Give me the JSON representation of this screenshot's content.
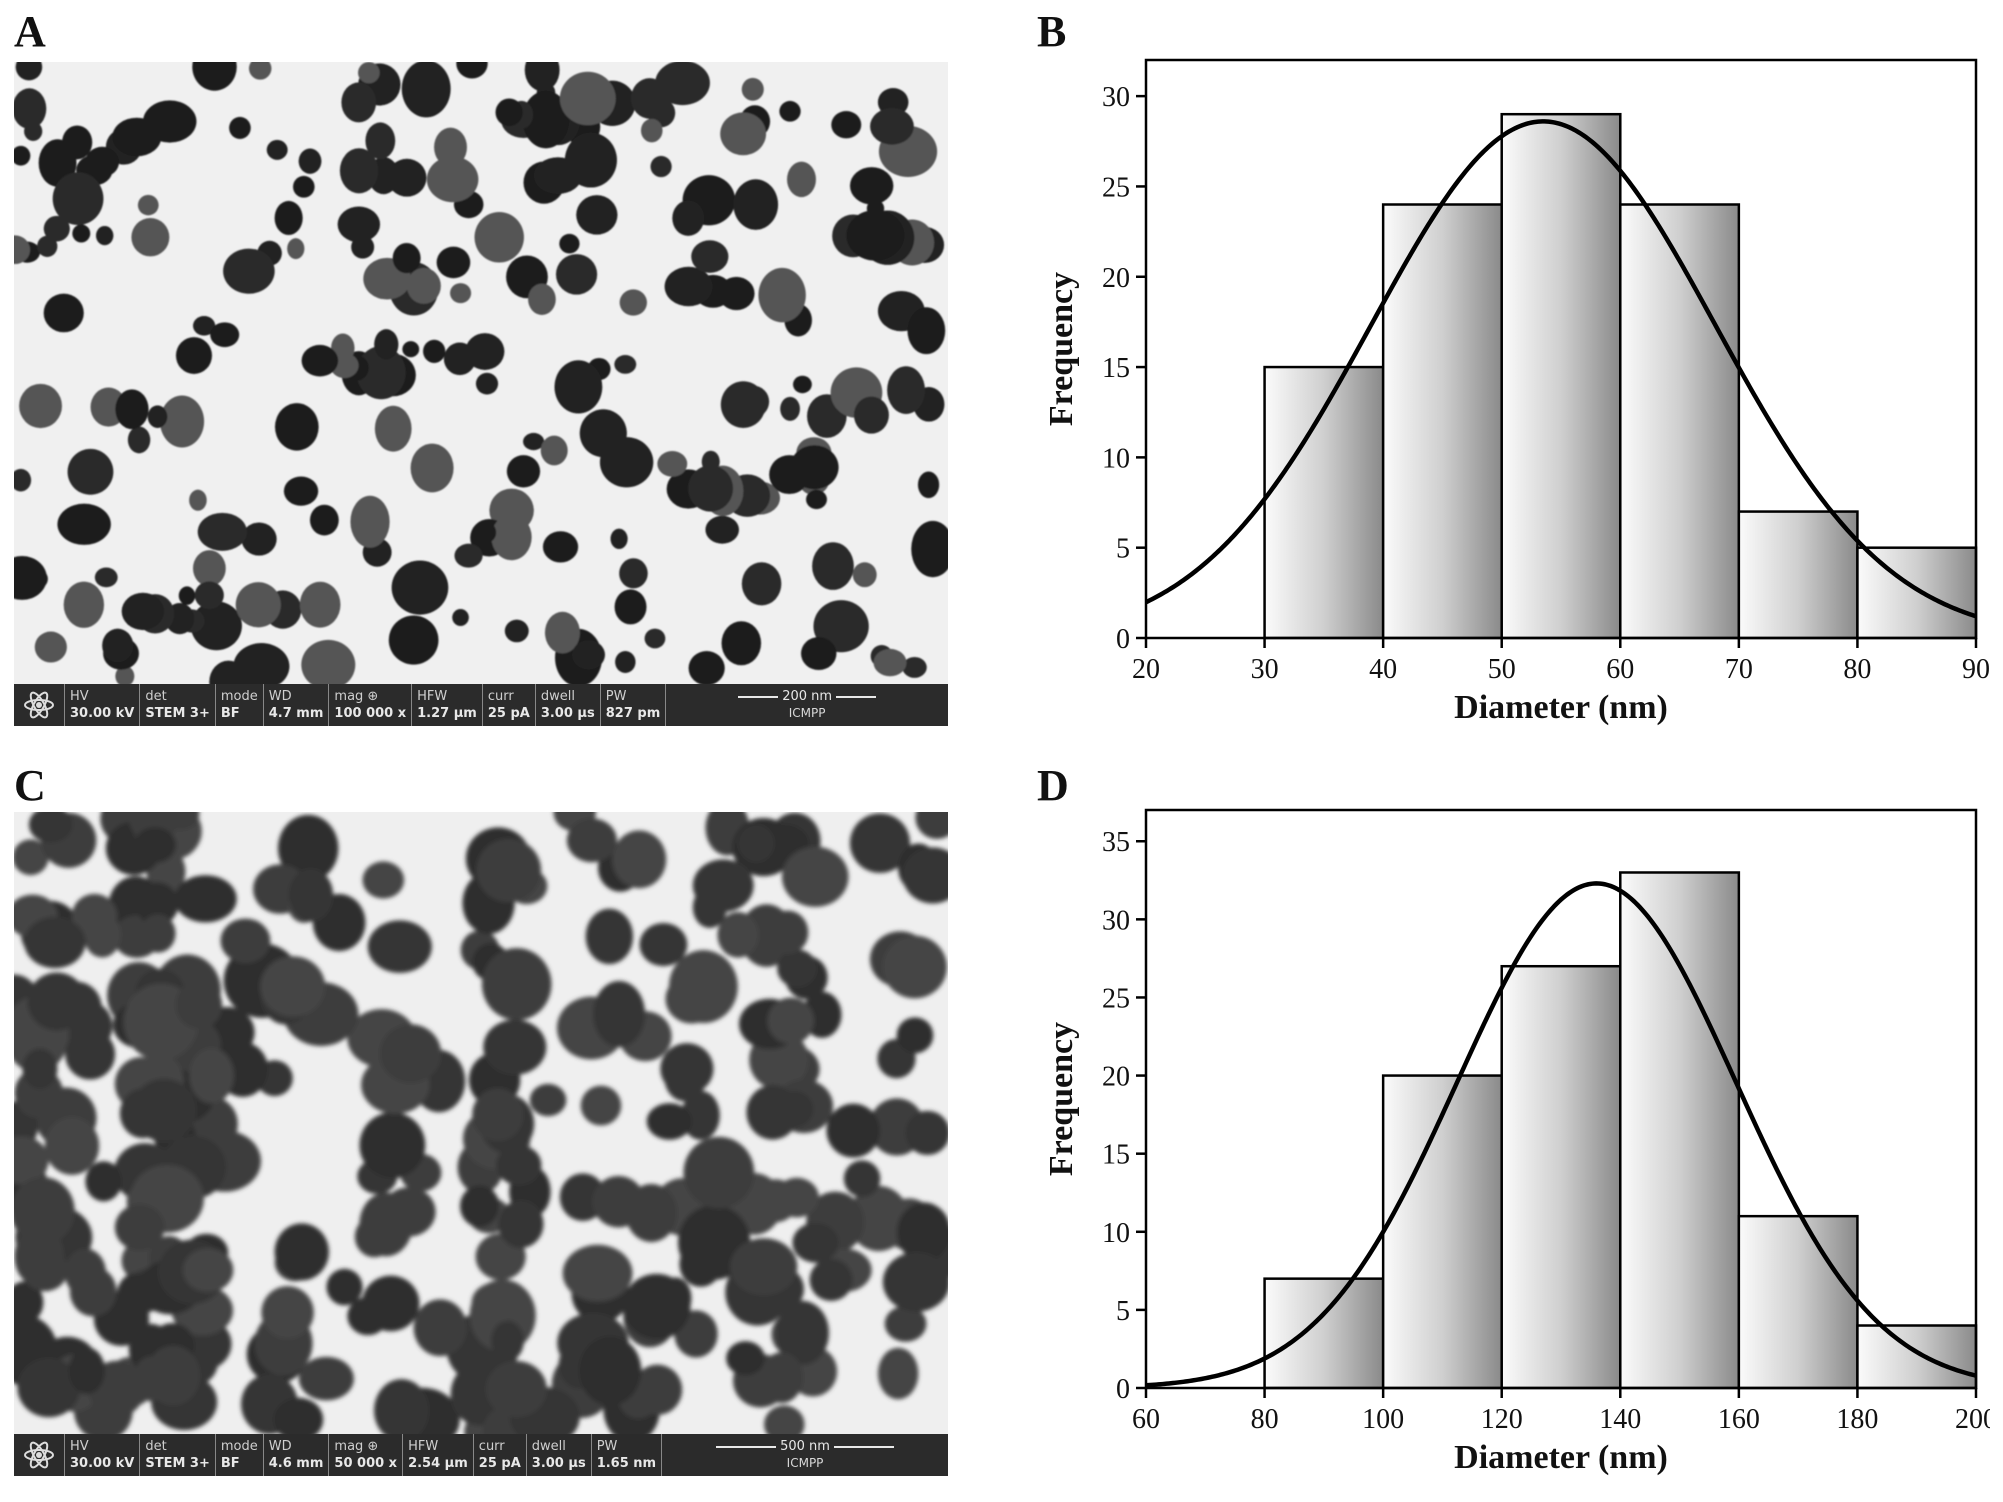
{
  "panels": [
    {
      "letter": "A",
      "infobar": [
        {
          "label": "HV",
          "value": "30.00 kV"
        },
        {
          "label": "det",
          "value": "STEM 3+"
        },
        {
          "label": "mode",
          "value": "BF"
        },
        {
          "label": "WD",
          "value": "4.7 mm"
        },
        {
          "label": "mag ⊕",
          "value": "100 000 x"
        },
        {
          "label": "HFW",
          "value": "1.27 µm"
        },
        {
          "label": "curr",
          "value": "25 pA"
        },
        {
          "label": "dwell",
          "value": "3.00 µs"
        },
        {
          "label": "PW",
          "value": "827 pm"
        }
      ],
      "scale": "200 nm",
      "lab": "ICMPP"
    },
    {
      "letter": "C",
      "infobar": [
        {
          "label": "HV",
          "value": "30.00 kV"
        },
        {
          "label": "det",
          "value": "STEM 3+"
        },
        {
          "label": "mode",
          "value": "BF"
        },
        {
          "label": "WD",
          "value": "4.6 mm"
        },
        {
          "label": "mag ⊕",
          "value": "50 000 x"
        },
        {
          "label": "HFW",
          "value": "2.54 µm"
        },
        {
          "label": "curr",
          "value": "25 pA"
        },
        {
          "label": "dwell",
          "value": "3.00 µs"
        },
        {
          "label": "PW",
          "value": "1.65 nm"
        }
      ],
      "scale": "500 nm",
      "lab": "ICMPP"
    }
  ],
  "chart_letters": [
    "B",
    "D"
  ],
  "chart_data": [
    {
      "type": "bar",
      "subtype": "histogram with normal fit",
      "bin_edges": [
        30,
        40,
        50,
        60,
        70,
        80,
        90
      ],
      "values": [
        15,
        24,
        29,
        24,
        7,
        5
      ],
      "xlabel": "Diameter (nm)",
      "ylabel": "Frequency",
      "xlim": [
        20,
        90
      ],
      "ylim": [
        0,
        32
      ],
      "xticks": [
        20,
        30,
        40,
        50,
        60,
        70,
        80,
        90
      ],
      "yticks": [
        0,
        5,
        10,
        15,
        20,
        25,
        30
      ],
      "fit": {
        "type": "normal",
        "mean": 53.5,
        "sd": 14.5,
        "peak": 28.6
      },
      "grid": false
    },
    {
      "type": "bar",
      "subtype": "histogram with normal fit",
      "bin_edges": [
        80,
        100,
        120,
        140,
        160,
        180,
        200
      ],
      "values": [
        7,
        20,
        27,
        33,
        11,
        4
      ],
      "xlabel": "Diameter (nm)",
      "ylabel": "Frequency",
      "xlim": [
        60,
        200
      ],
      "ylim": [
        0,
        37
      ],
      "xticks": [
        60,
        80,
        100,
        120,
        140,
        160,
        180,
        200
      ],
      "yticks": [
        0,
        5,
        10,
        15,
        20,
        25,
        30,
        35
      ],
      "fit": {
        "type": "normal",
        "mean": 136,
        "sd": 23.5,
        "peak": 32.3
      },
      "grid": false
    }
  ]
}
